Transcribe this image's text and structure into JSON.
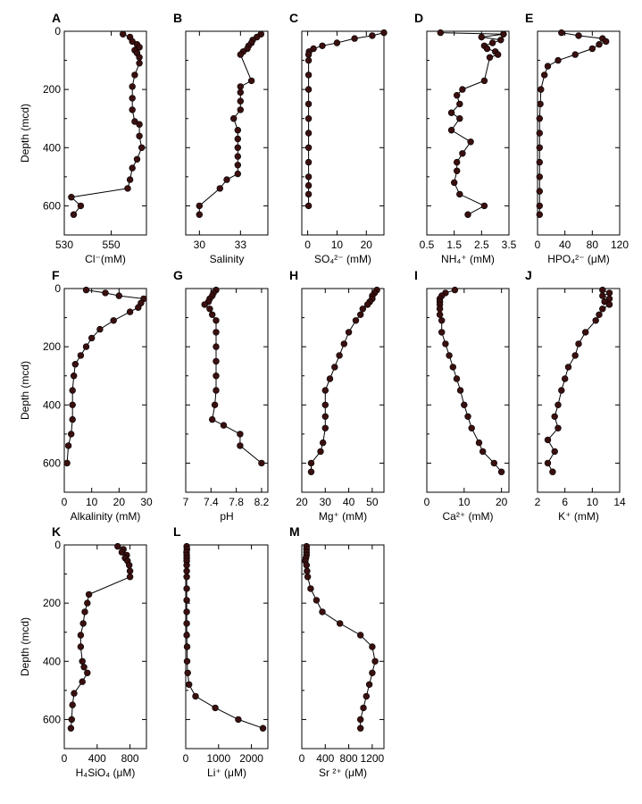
{
  "figure": {
    "y_axis_label": "Depth (mcd)"
  },
  "chart_data": [
    {
      "id": "A",
      "type": "scatter",
      "xlabel": "Cl⁻(mM)",
      "xlim": [
        530,
        565
      ],
      "xticks": [
        530,
        550
      ],
      "ylim": [
        700,
        0
      ],
      "yticks": [
        0,
        200,
        400,
        600
      ],
      "y": [
        10,
        20,
        35,
        45,
        55,
        65,
        75,
        90,
        110,
        150,
        190,
        230,
        270,
        310,
        320,
        360,
        400,
        440,
        470,
        510,
        540,
        570,
        600,
        630
      ],
      "x": [
        555,
        558,
        559,
        561,
        562,
        560,
        561,
        562,
        562,
        560,
        559,
        559,
        559,
        560,
        562,
        562,
        563,
        561,
        559,
        558,
        557,
        533,
        537,
        534
      ]
    },
    {
      "id": "B",
      "type": "scatter",
      "xlabel": "Salinity",
      "xlim": [
        29,
        35
      ],
      "xticks": [
        30,
        33
      ],
      "ylim": [
        700,
        0
      ],
      "yticks": [
        0,
        200,
        400,
        600
      ],
      "y": [
        10,
        20,
        30,
        40,
        50,
        60,
        70,
        80,
        170,
        190,
        210,
        240,
        270,
        300,
        340,
        370,
        400,
        430,
        460,
        490,
        510,
        540,
        600,
        630
      ],
      "x": [
        34.5,
        34.2,
        33.9,
        33.8,
        33.6,
        33.5,
        33.2,
        33,
        33.8,
        33,
        33,
        33,
        33,
        32.5,
        32.8,
        32.8,
        32.8,
        32.8,
        32.8,
        32.8,
        32,
        31.5,
        30,
        30
      ]
    },
    {
      "id": "C",
      "type": "scatter",
      "xlabel": "SO₄²⁻ (mM)",
      "xlim": [
        -2,
        26
      ],
      "xticks": [
        0,
        10,
        20
      ],
      "ylim": [
        700,
        0
      ],
      "yticks": [
        0,
        200,
        400,
        600
      ],
      "y": [
        5,
        15,
        25,
        40,
        50,
        60,
        70,
        80,
        100,
        150,
        200,
        250,
        300,
        350,
        400,
        450,
        500,
        530,
        560,
        600
      ],
      "x": [
        26,
        22,
        16,
        10,
        5,
        2,
        0.5,
        0.3,
        0.3,
        0.3,
        0.3,
        0.3,
        0.3,
        0.3,
        0.3,
        0.3,
        0.3,
        0.3,
        0.3,
        0.3
      ]
    },
    {
      "id": "D",
      "type": "scatter",
      "xlabel": "NH₄⁺ (mM)",
      "xlim": [
        0.5,
        3.5
      ],
      "xticks": [
        0.5,
        1.5,
        2.5,
        3.5
      ],
      "ylim": [
        700,
        0
      ],
      "yticks": [
        0,
        200,
        400,
        600
      ],
      "y": [
        5,
        10,
        20,
        30,
        40,
        50,
        60,
        70,
        80,
        90,
        170,
        200,
        220,
        250,
        280,
        300,
        340,
        380,
        420,
        450,
        480,
        520,
        560,
        600,
        630
      ],
      "x": [
        1,
        3.3,
        2.5,
        3.2,
        2.9,
        2.6,
        2.7,
        3,
        3.1,
        2.8,
        2.6,
        1.8,
        1.6,
        1.7,
        1.4,
        1.7,
        1.4,
        2.1,
        1.8,
        1.6,
        1.6,
        1.5,
        1.7,
        2.6,
        2.0
      ]
    },
    {
      "id": "E",
      "type": "scatter",
      "xlabel": "HPO₄²⁻ (μM)",
      "xlim": [
        0,
        120
      ],
      "xticks": [
        0,
        40,
        80,
        120
      ],
      "ylim": [
        700,
        0
      ],
      "yticks": [
        0,
        200,
        400,
        600
      ],
      "y": [
        5,
        15,
        25,
        35,
        45,
        60,
        80,
        100,
        120,
        150,
        200,
        250,
        300,
        350,
        400,
        450,
        500,
        550,
        600,
        630
      ],
      "x": [
        35,
        60,
        95,
        100,
        90,
        80,
        55,
        30,
        15,
        10,
        5,
        4,
        3,
        3,
        3,
        3,
        3,
        3,
        3,
        3
      ]
    },
    {
      "id": "F",
      "type": "scatter",
      "xlabel": "Alkalinity (mM)",
      "xlim": [
        0,
        30
      ],
      "xticks": [
        0,
        10,
        20,
        30
      ],
      "ylim": [
        700,
        0
      ],
      "yticks": [
        0,
        200,
        400,
        600
      ],
      "y": [
        5,
        15,
        25,
        35,
        50,
        65,
        80,
        110,
        140,
        170,
        200,
        230,
        260,
        300,
        350,
        400,
        450,
        500,
        540,
        600
      ],
      "x": [
        8,
        15,
        20,
        29,
        28,
        27,
        24,
        18,
        13,
        10,
        8,
        6,
        4,
        3.5,
        3,
        3,
        3,
        2.5,
        1.5,
        1
      ]
    },
    {
      "id": "G",
      "type": "scatter",
      "xlabel": "pH",
      "xlim": [
        7,
        8.3
      ],
      "xticks": [
        7.0,
        7.4,
        7.8,
        8.2
      ],
      "ylim": [
        700,
        0
      ],
      "yticks": [
        0,
        200,
        400,
        600
      ],
      "y": [
        5,
        15,
        25,
        35,
        45,
        55,
        70,
        90,
        110,
        150,
        200,
        250,
        300,
        350,
        400,
        450,
        470,
        500,
        540,
        600
      ],
      "x": [
        7.48,
        7.44,
        7.42,
        7.38,
        7.36,
        7.3,
        7.38,
        7.42,
        7.48,
        7.48,
        7.48,
        7.48,
        7.48,
        7.48,
        7.46,
        7.42,
        7.6,
        7.86,
        7.86,
        8.2
      ]
    },
    {
      "id": "H",
      "type": "scatter",
      "xlabel": "Mg⁺ (mM)",
      "xlim": [
        20,
        55
      ],
      "xticks": [
        20,
        30,
        40,
        50
      ],
      "ylim": [
        700,
        0
      ],
      "yticks": [
        0,
        200,
        400,
        600
      ],
      "y": [
        5,
        15,
        25,
        35,
        45,
        55,
        70,
        90,
        110,
        150,
        190,
        230,
        270,
        310,
        350,
        400,
        440,
        480,
        530,
        560,
        600,
        630
      ],
      "x": [
        52,
        51,
        50,
        50,
        49,
        48,
        46,
        45,
        43,
        40,
        38,
        36,
        34,
        32,
        30,
        30,
        30,
        30,
        29,
        28,
        24,
        24
      ]
    },
    {
      "id": "I",
      "type": "scatter",
      "xlabel": "Ca²⁺ (mM)",
      "xlim": [
        0,
        22
      ],
      "xticks": [
        0,
        10,
        20
      ],
      "ylim": [
        700,
        0
      ],
      "yticks": [
        0,
        200,
        400,
        600
      ],
      "y": [
        5,
        15,
        25,
        35,
        45,
        55,
        70,
        90,
        110,
        150,
        190,
        230,
        270,
        310,
        350,
        400,
        440,
        480,
        530,
        560,
        600,
        630
      ],
      "x": [
        7.5,
        5,
        4,
        3.5,
        3.5,
        3.5,
        3.5,
        3.5,
        4,
        4,
        5,
        6,
        7,
        8,
        9,
        10,
        11,
        12,
        14,
        15,
        18,
        20
      ]
    },
    {
      "id": "J",
      "type": "scatter",
      "xlabel": "K⁺ (mM)",
      "xlim": [
        2,
        14
      ],
      "xticks": [
        2,
        6,
        10,
        14
      ],
      "ylim": [
        700,
        0
      ],
      "yticks": [
        0,
        200,
        400,
        600
      ],
      "y": [
        5,
        15,
        25,
        35,
        45,
        55,
        70,
        90,
        110,
        150,
        190,
        230,
        270,
        310,
        350,
        400,
        440,
        480,
        520,
        560,
        600,
        630
      ],
      "x": [
        11.5,
        12.5,
        11.5,
        12.5,
        11.8,
        12.5,
        11.5,
        11,
        10.5,
        9,
        8,
        7.5,
        6.5,
        6,
        5.5,
        5,
        4.5,
        5,
        3.5,
        4.5,
        3.5,
        4.2
      ]
    },
    {
      "id": "K",
      "type": "scatter",
      "xlabel": "H₄SiO₄ (μM)",
      "xlim": [
        0,
        1000
      ],
      "xticks": [
        0,
        400,
        800
      ],
      "ylim": [
        700,
        0
      ],
      "yticks": [
        0,
        200,
        400,
        600
      ],
      "y": [
        5,
        15,
        25,
        35,
        45,
        55,
        70,
        90,
        110,
        170,
        200,
        230,
        270,
        310,
        350,
        400,
        420,
        440,
        470,
        510,
        550,
        600,
        630
      ],
      "x": [
        650,
        720,
        700,
        760,
        740,
        770,
        790,
        800,
        800,
        300,
        280,
        250,
        230,
        200,
        200,
        220,
        240,
        280,
        220,
        120,
        100,
        90,
        80
      ]
    },
    {
      "id": "L",
      "type": "scatter",
      "xlabel": "Li⁺ (μM)",
      "xlim": [
        0,
        2500
      ],
      "xticks": [
        0,
        1000,
        2000
      ],
      "ylim": [
        700,
        0
      ],
      "yticks": [
        0,
        200,
        400,
        600
      ],
      "y": [
        5,
        15,
        25,
        35,
        45,
        55,
        70,
        90,
        110,
        150,
        190,
        230,
        270,
        310,
        350,
        400,
        440,
        480,
        520,
        560,
        600,
        630
      ],
      "x": [
        30,
        35,
        25,
        30,
        30,
        30,
        30,
        30,
        30,
        30,
        30,
        30,
        30,
        30,
        40,
        40,
        60,
        100,
        300,
        900,
        1600,
        2350
      ]
    },
    {
      "id": "M",
      "type": "scatter",
      "xlabel": "Sr ²⁺ (μM)",
      "xlim": [
        0,
        1400
      ],
      "xticks": [
        0,
        400,
        800,
        1200
      ],
      "ylim": [
        700,
        0
      ],
      "yticks": [
        0,
        200,
        400,
        600
      ],
      "y": [
        5,
        15,
        25,
        35,
        45,
        55,
        70,
        90,
        110,
        150,
        190,
        230,
        270,
        310,
        350,
        400,
        440,
        480,
        520,
        560,
        600,
        630
      ],
      "x": [
        80,
        80,
        80,
        80,
        70,
        60,
        80,
        90,
        100,
        150,
        250,
        350,
        650,
        1000,
        1200,
        1250,
        1200,
        1150,
        1100,
        1050,
        1000,
        1000
      ]
    }
  ]
}
